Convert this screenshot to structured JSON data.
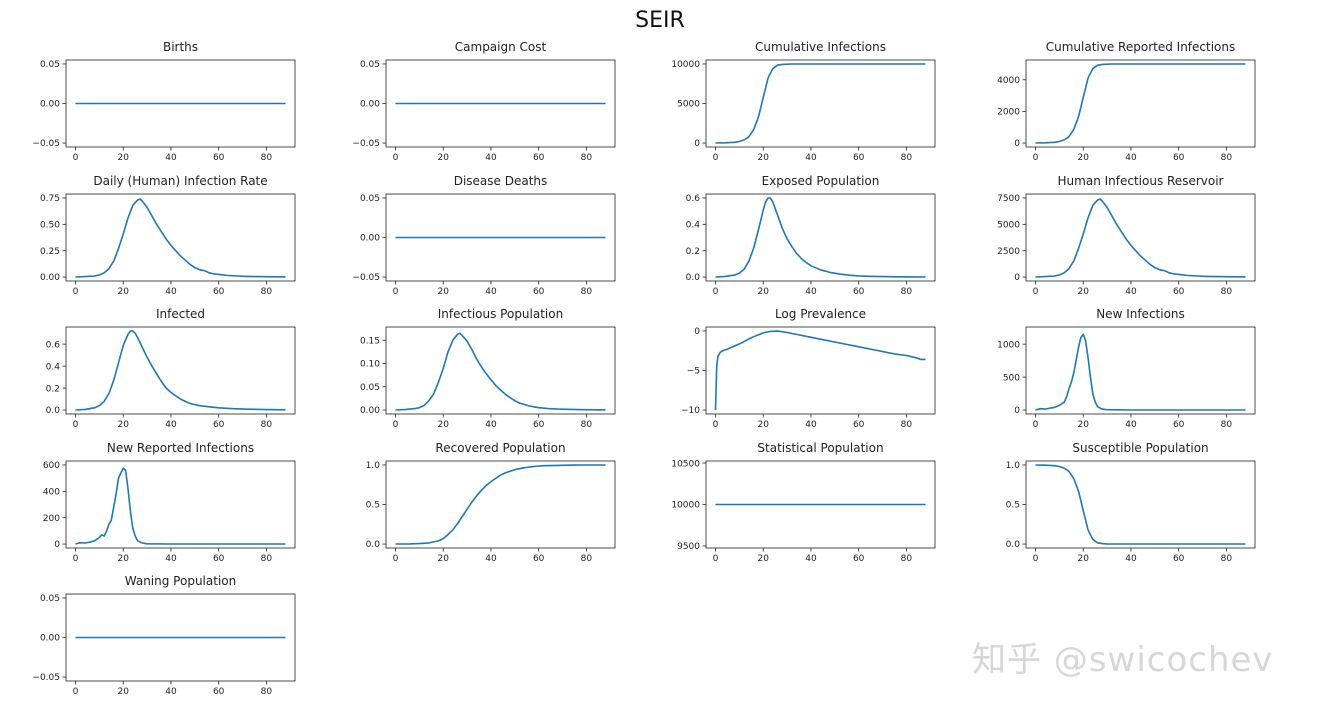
{
  "figure": {
    "title": "SEIR",
    "watermark": "知乎 @swicochev",
    "line_color": "#1f77b4"
  },
  "chart_data": [
    {
      "type": "line",
      "title": "Births",
      "xlabel": "",
      "ylabel": "",
      "xlim": [
        -4,
        92
      ],
      "ylim": [
        -0.055,
        0.055
      ],
      "xticks": [
        0,
        20,
        40,
        60,
        80
      ],
      "yticks": [
        -0.05,
        0.0,
        0.05
      ],
      "ytick_labels": [
        "−0.05",
        "0.00",
        "0.05"
      ],
      "x": [
        0,
        88
      ],
      "y": [
        0,
        0
      ]
    },
    {
      "type": "line",
      "title": "Campaign Cost",
      "xlabel": "",
      "ylabel": "",
      "xlim": [
        -4,
        92
      ],
      "ylim": [
        -0.055,
        0.055
      ],
      "xticks": [
        0,
        20,
        40,
        60,
        80
      ],
      "yticks": [
        -0.05,
        0.0,
        0.05
      ],
      "ytick_labels": [
        "−0.05",
        "0.00",
        "0.05"
      ],
      "x": [
        0,
        88
      ],
      "y": [
        0,
        0
      ]
    },
    {
      "type": "line",
      "title": "Cumulative Infections",
      "xlabel": "",
      "ylabel": "",
      "xlim": [
        -4,
        92
      ],
      "ylim": [
        -500,
        10500
      ],
      "xticks": [
        0,
        20,
        40,
        60,
        80
      ],
      "yticks": [
        0,
        5000,
        10000
      ],
      "ytick_labels": [
        "0",
        "5000",
        "10000"
      ],
      "x": [
        0,
        4,
        8,
        10,
        12,
        14,
        16,
        18,
        20,
        22,
        24,
        26,
        28,
        32,
        40,
        50,
        60,
        70,
        80,
        88
      ],
      "y": [
        0,
        30,
        100,
        200,
        400,
        800,
        1700,
        3300,
        5800,
        8200,
        9400,
        9850,
        9950,
        9990,
        10000,
        10000,
        10000,
        10000,
        10000,
        10000
      ]
    },
    {
      "type": "line",
      "title": "Cumulative Reported Infections",
      "xlabel": "",
      "ylabel": "",
      "xlim": [
        -4,
        92
      ],
      "ylim": [
        -250,
        5250
      ],
      "xticks": [
        0,
        20,
        40,
        60,
        80
      ],
      "yticks": [
        0,
        2000,
        4000
      ],
      "ytick_labels": [
        "0",
        "2000",
        "4000"
      ],
      "x": [
        0,
        4,
        8,
        10,
        12,
        14,
        16,
        18,
        20,
        22,
        24,
        26,
        28,
        32,
        40,
        50,
        60,
        70,
        80,
        88
      ],
      "y": [
        0,
        15,
        50,
        100,
        200,
        400,
        850,
        1650,
        2900,
        4100,
        4700,
        4920,
        4970,
        4995,
        5000,
        5000,
        5000,
        5000,
        5000,
        5000
      ]
    },
    {
      "type": "line",
      "title": "Daily (Human) Infection Rate",
      "xlabel": "",
      "ylabel": "",
      "xlim": [
        -4,
        92
      ],
      "ylim": [
        -0.0375,
        0.7875
      ],
      "xticks": [
        0,
        20,
        40,
        60,
        80
      ],
      "yticks": [
        0,
        0.25,
        0.5,
        0.75
      ],
      "ytick_labels": [
        "0.00",
        "0.25",
        "0.50",
        "0.75"
      ],
      "x": [
        0,
        4,
        8,
        10,
        12,
        14,
        16,
        18,
        20,
        22,
        24,
        26,
        27,
        28,
        30,
        32,
        34,
        36,
        38,
        40,
        42,
        44,
        46,
        48,
        50,
        52,
        54,
        56,
        58,
        60,
        64,
        68,
        72,
        76,
        80,
        84,
        88
      ],
      "y": [
        0.0,
        0.004,
        0.01,
        0.02,
        0.04,
        0.08,
        0.15,
        0.27,
        0.41,
        0.56,
        0.68,
        0.73,
        0.74,
        0.72,
        0.66,
        0.58,
        0.5,
        0.43,
        0.36,
        0.3,
        0.25,
        0.2,
        0.16,
        0.12,
        0.09,
        0.07,
        0.06,
        0.04,
        0.03,
        0.025,
        0.015,
        0.01,
        0.006,
        0.004,
        0.003,
        0.002,
        0.001
      ]
    },
    {
      "type": "line",
      "title": "Disease Deaths",
      "xlabel": "",
      "ylabel": "",
      "xlim": [
        -4,
        92
      ],
      "ylim": [
        -0.055,
        0.055
      ],
      "xticks": [
        0,
        20,
        40,
        60,
        80
      ],
      "yticks": [
        -0.05,
        0.0,
        0.05
      ],
      "ytick_labels": [
        "−0.05",
        "0.00",
        "0.05"
      ],
      "x": [
        0,
        88
      ],
      "y": [
        0,
        0
      ]
    },
    {
      "type": "line",
      "title": "Exposed Population",
      "xlabel": "",
      "ylabel": "",
      "xlim": [
        -4,
        92
      ],
      "ylim": [
        -0.03,
        0.63
      ],
      "xticks": [
        0,
        20,
        40,
        60,
        80
      ],
      "yticks": [
        0,
        0.2,
        0.4,
        0.6
      ],
      "ytick_labels": [
        "0.0",
        "0.2",
        "0.4",
        "0.6"
      ],
      "x": [
        0,
        4,
        8,
        10,
        12,
        14,
        16,
        18,
        20,
        21,
        22,
        23,
        24,
        26,
        28,
        30,
        32,
        34,
        36,
        38,
        40,
        44,
        48,
        52,
        56,
        60,
        64,
        70,
        76,
        82,
        88
      ],
      "y": [
        0.0,
        0.005,
        0.015,
        0.03,
        0.06,
        0.12,
        0.22,
        0.36,
        0.51,
        0.57,
        0.6,
        0.6,
        0.57,
        0.47,
        0.37,
        0.29,
        0.23,
        0.18,
        0.14,
        0.11,
        0.085,
        0.055,
        0.035,
        0.022,
        0.014,
        0.009,
        0.006,
        0.003,
        0.002,
        0.001,
        0.0
      ]
    },
    {
      "type": "line",
      "title": "Human Infectious Reservoir",
      "xlabel": "",
      "ylabel": "",
      "xlim": [
        -4,
        92
      ],
      "ylim": [
        -375,
        7875
      ],
      "xticks": [
        0,
        20,
        40,
        60,
        80
      ],
      "yticks": [
        0,
        2500,
        5000,
        7500
      ],
      "ytick_labels": [
        "0",
        "2500",
        "5000",
        "7500"
      ],
      "x": [
        0,
        4,
        8,
        10,
        12,
        14,
        16,
        18,
        20,
        22,
        24,
        26,
        27,
        28,
        30,
        32,
        34,
        36,
        38,
        40,
        42,
        44,
        46,
        48,
        50,
        52,
        54,
        56,
        58,
        60,
        64,
        68,
        72,
        76,
        80,
        84,
        88
      ],
      "y": [
        0,
        40,
        100,
        200,
        400,
        800,
        1500,
        2700,
        4100,
        5600,
        6800,
        7300,
        7400,
        7200,
        6600,
        5800,
        5000,
        4300,
        3600,
        3000,
        2500,
        2000,
        1600,
        1200,
        900,
        700,
        600,
        400,
        300,
        250,
        150,
        100,
        60,
        40,
        30,
        20,
        10
      ]
    },
    {
      "type": "line",
      "title": "Infected",
      "xlabel": "",
      "ylabel": "",
      "xlim": [
        -4,
        92
      ],
      "ylim": [
        -0.036,
        0.756
      ],
      "xticks": [
        0,
        20,
        40,
        60,
        80
      ],
      "yticks": [
        0,
        0.2,
        0.4,
        0.6
      ],
      "ytick_labels": [
        "0.0",
        "0.2",
        "0.4",
        "0.6"
      ],
      "x": [
        0,
        4,
        8,
        10,
        12,
        14,
        16,
        18,
        20,
        22,
        23,
        24,
        25,
        26,
        28,
        30,
        32,
        34,
        36,
        38,
        40,
        44,
        48,
        52,
        56,
        60,
        66,
        72,
        80,
        88
      ],
      "y": [
        0.0,
        0.006,
        0.02,
        0.04,
        0.08,
        0.15,
        0.27,
        0.43,
        0.59,
        0.69,
        0.72,
        0.72,
        0.7,
        0.66,
        0.57,
        0.48,
        0.4,
        0.33,
        0.26,
        0.2,
        0.16,
        0.1,
        0.06,
        0.04,
        0.03,
        0.02,
        0.012,
        0.008,
        0.004,
        0.002
      ]
    },
    {
      "type": "line",
      "title": "Infectious Population",
      "xlabel": "",
      "ylabel": "",
      "xlim": [
        -4,
        92
      ],
      "ylim": [
        -0.0085,
        0.1785
      ],
      "xticks": [
        0,
        20,
        40,
        60,
        80
      ],
      "yticks": [
        0,
        0.05,
        0.1,
        0.15
      ],
      "ytick_labels": [
        "0.00",
        "0.05",
        "0.10",
        "0.15"
      ],
      "x": [
        0,
        4,
        8,
        10,
        12,
        14,
        16,
        18,
        20,
        22,
        24,
        26,
        27,
        28,
        30,
        32,
        34,
        36,
        38,
        40,
        42,
        44,
        46,
        48,
        50,
        52,
        54,
        56,
        58,
        60,
        64,
        68,
        72,
        76,
        80,
        84,
        88
      ],
      "y": [
        0.0,
        0.001,
        0.003,
        0.005,
        0.01,
        0.02,
        0.035,
        0.06,
        0.09,
        0.125,
        0.15,
        0.163,
        0.165,
        0.16,
        0.148,
        0.13,
        0.11,
        0.093,
        0.078,
        0.065,
        0.053,
        0.043,
        0.034,
        0.027,
        0.02,
        0.015,
        0.012,
        0.009,
        0.007,
        0.005,
        0.003,
        0.002,
        0.0015,
        0.001,
        0.0008,
        0.0005,
        0.0003
      ]
    },
    {
      "type": "line",
      "title": "Log Prevalence",
      "xlabel": "",
      "ylabel": "",
      "xlim": [
        -4,
        92
      ],
      "ylim": [
        -10.5,
        0.5
      ],
      "xticks": [
        0,
        20,
        40,
        60,
        80
      ],
      "yticks": [
        -10,
        -5,
        0
      ],
      "ytick_labels": [
        "−10",
        "−5",
        "0"
      ],
      "x": [
        0,
        0.5,
        1,
        2,
        3,
        5,
        8,
        11,
        14,
        17,
        20,
        23,
        26,
        30,
        35,
        40,
        45,
        50,
        55,
        60,
        65,
        70,
        75,
        80,
        84,
        86,
        88
      ],
      "y": [
        -10,
        -4.5,
        -3.2,
        -2.7,
        -2.5,
        -2.3,
        -1.9,
        -1.5,
        -1.0,
        -0.6,
        -0.25,
        -0.05,
        -0.02,
        -0.2,
        -0.5,
        -0.8,
        -1.1,
        -1.4,
        -1.7,
        -2.0,
        -2.3,
        -2.6,
        -2.9,
        -3.1,
        -3.4,
        -3.6,
        -3.6
      ]
    },
    {
      "type": "line",
      "title": "New Infections",
      "xlabel": "",
      "ylabel": "",
      "xlim": [
        -4,
        92
      ],
      "ylim": [
        -60,
        1260
      ],
      "xticks": [
        0,
        20,
        40,
        60,
        80
      ],
      "yticks": [
        0,
        500,
        1000
      ],
      "ytick_labels": [
        "0",
        "500",
        "1000"
      ],
      "x": [
        0,
        2,
        4,
        6,
        8,
        10,
        12,
        13,
        14,
        15,
        16,
        17,
        18,
        19,
        20,
        21,
        22,
        23,
        24,
        25,
        26,
        28,
        30,
        40,
        60,
        88
      ],
      "y": [
        0,
        20,
        15,
        30,
        40,
        70,
        120,
        200,
        320,
        420,
        560,
        750,
        950,
        1100,
        1150,
        1050,
        800,
        500,
        250,
        120,
        50,
        15,
        5,
        0,
        0,
        0
      ]
    },
    {
      "type": "line",
      "title": "New Reported Infections",
      "xlabel": "",
      "ylabel": "",
      "xlim": [
        -4,
        92
      ],
      "ylim": [
        -30,
        630
      ],
      "xticks": [
        0,
        20,
        40,
        60,
        80
      ],
      "yticks": [
        0,
        200,
        400,
        600
      ],
      "ytick_labels": [
        "0",
        "200",
        "400",
        "600"
      ],
      "x": [
        0,
        2,
        4,
        6,
        8,
        10,
        11,
        12,
        13,
        14,
        15,
        16,
        17,
        18,
        19,
        20,
        21,
        22,
        23,
        24,
        25,
        26,
        28,
        30,
        40,
        60,
        88
      ],
      "y": [
        0,
        10,
        8,
        15,
        25,
        50,
        70,
        60,
        100,
        150,
        180,
        280,
        380,
        500,
        540,
        575,
        560,
        420,
        250,
        120,
        60,
        25,
        8,
        2,
        0,
        0,
        0
      ]
    },
    {
      "type": "line",
      "title": "Recovered Population",
      "xlabel": "",
      "ylabel": "",
      "xlim": [
        -4,
        92
      ],
      "ylim": [
        -0.05,
        1.05
      ],
      "xticks": [
        0,
        20,
        40,
        60,
        80
      ],
      "yticks": [
        0,
        0.5,
        1.0
      ],
      "ytick_labels": [
        "0.0",
        "0.5",
        "1.0"
      ],
      "x": [
        0,
        6,
        10,
        14,
        18,
        20,
        22,
        24,
        26,
        28,
        30,
        32,
        34,
        36,
        38,
        40,
        42,
        44,
        46,
        48,
        50,
        54,
        58,
        62,
        68,
        74,
        80,
        88
      ],
      "y": [
        0.0,
        0.002,
        0.006,
        0.015,
        0.04,
        0.07,
        0.12,
        0.18,
        0.26,
        0.35,
        0.44,
        0.53,
        0.61,
        0.68,
        0.74,
        0.79,
        0.83,
        0.87,
        0.9,
        0.92,
        0.94,
        0.965,
        0.98,
        0.99,
        0.995,
        0.998,
        0.999,
        1.0
      ]
    },
    {
      "type": "line",
      "title": "Statistical Population",
      "xlabel": "",
      "ylabel": "",
      "xlim": [
        -4,
        92
      ],
      "ylim": [
        9475,
        10525
      ],
      "xticks": [
        0,
        20,
        40,
        60,
        80
      ],
      "yticks": [
        9500,
        10000,
        10500
      ],
      "ytick_labels": [
        "9500",
        "10000",
        "10500"
      ],
      "x": [
        0,
        88
      ],
      "y": [
        10000,
        10000
      ]
    },
    {
      "type": "line",
      "title": "Susceptible Population",
      "xlabel": "",
      "ylabel": "",
      "xlim": [
        -4,
        92
      ],
      "ylim": [
        -0.05,
        1.05
      ],
      "xticks": [
        0,
        20,
        40,
        60,
        80
      ],
      "yticks": [
        0,
        0.5,
        1.0
      ],
      "ytick_labels": [
        "0.0",
        "0.5",
        "1.0"
      ],
      "x": [
        0,
        4,
        8,
        10,
        12,
        14,
        16,
        18,
        20,
        22,
        24,
        26,
        28,
        30,
        34,
        40,
        50,
        60,
        70,
        80,
        88
      ],
      "y": [
        1.0,
        0.997,
        0.99,
        0.98,
        0.96,
        0.92,
        0.83,
        0.67,
        0.42,
        0.18,
        0.06,
        0.015,
        0.005,
        0.002,
        0.0,
        0.0,
        0.0,
        0.0,
        0.0,
        0.0,
        0.0
      ]
    },
    {
      "type": "line",
      "title": "Waning Population",
      "xlabel": "",
      "ylabel": "",
      "xlim": [
        -4,
        92
      ],
      "ylim": [
        -0.055,
        0.055
      ],
      "xticks": [
        0,
        20,
        40,
        60,
        80
      ],
      "yticks": [
        -0.05,
        0.0,
        0.05
      ],
      "ytick_labels": [
        "−0.05",
        "0.00",
        "0.05"
      ],
      "x": [
        0,
        88
      ],
      "y": [
        0,
        0
      ]
    }
  ]
}
